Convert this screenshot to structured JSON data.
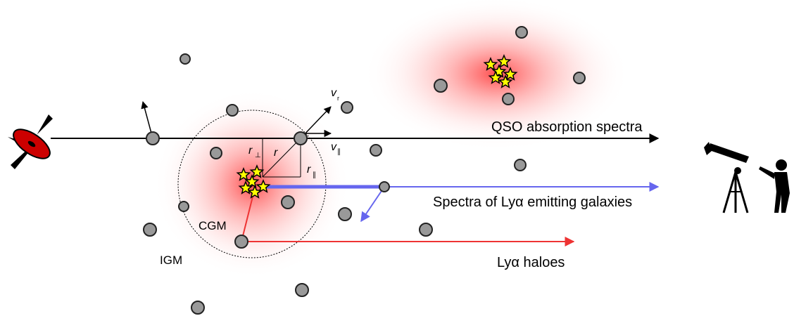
{
  "labels": {
    "qso": "QSO absorption spectra",
    "lae": "Spectra of Lyα emitting galaxies",
    "halo": "Lyα haloes",
    "cgm": "CGM",
    "igm": "IGM",
    "r": "r",
    "r_perp": "r",
    "r_perp_sub": "⊥",
    "r_par": "r",
    "r_par_sub": "∥",
    "v_r": "v",
    "v_r_sub": "r",
    "v_par": "v",
    "v_par_sub": "∥"
  },
  "colors": {
    "qso_ray": "#000000",
    "lae_ray": "#6666ee",
    "halo_ray": "#ee3333",
    "glow": "#ff3333",
    "galaxy_fill": "#999999",
    "star_fill": "#ffff00",
    "qso_body": "#cc0000"
  },
  "icons": {
    "quasar": "quasar-icon",
    "telescope": "telescope-observer-icon",
    "star": "star-icon",
    "galaxy": "gas-cloud-circle-icon"
  }
}
